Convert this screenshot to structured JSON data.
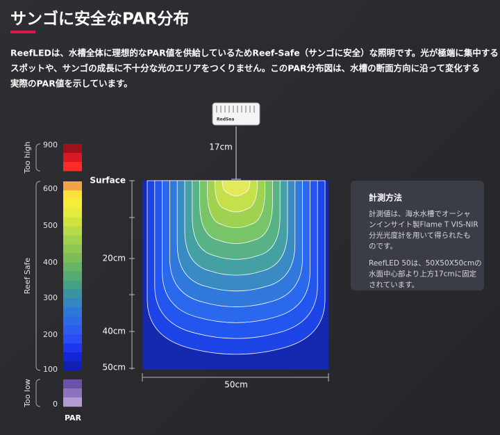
{
  "header": {
    "title": "サンゴに安全なPAR分布",
    "paragraph": [
      "ReefLEDは、水槽全体に理想的なPAR値を供給しているためReef-Safe（サンゴに安全）な照明です。光が極端に集中する",
      "スポットや、サンゴの成長に不十分な光のエリアをつくりません。このPAR分布図は、水槽の断面方向に沿って変化する",
      "実際のPAR値を示しています。"
    ]
  },
  "scale": {
    "title": "PAR",
    "groups": [
      {
        "label": "Too high",
        "ticks": [
          "900"
        ],
        "colors": [
          "#a0101a",
          "#d81822",
          "#ff2a2a"
        ]
      },
      {
        "label": "Reef Safe",
        "ticks": [
          "600",
          "500",
          "400",
          "300",
          "200",
          "100"
        ],
        "colors": [
          "#f4a14c",
          "#fbe23a",
          "#f3ee3c",
          "#e4ea3e",
          "#cfe240",
          "#b8da48",
          "#a3d04e",
          "#8fc654",
          "#7cbd5a",
          "#68b464",
          "#56aa72",
          "#46a084",
          "#3a93a0",
          "#3386c0",
          "#2f78d8",
          "#2e6ae6",
          "#2d5cf0",
          "#2a4ef4",
          "#1f36f0",
          "#1424d8",
          "#1020b0"
        ]
      },
      {
        "label": "Too low",
        "ticks": [
          "0"
        ],
        "colors": [
          "#6a52a8",
          "#8e72bc",
          "#b39ad0"
        ]
      }
    ]
  },
  "diagram": {
    "fixture_label": "RedSea",
    "height_label": "17cm",
    "depth_labels": [
      "Surface",
      "20cm",
      "40cm",
      "50cm"
    ],
    "width_label": "50cm"
  },
  "info": {
    "title": "計測方法",
    "paragraphs": [
      [
        "計測値は、海水水槽でオーシャ",
        "ンインサイト製Flame T VIS-NIR",
        "分光光度計を用いて得られたも",
        "のです。"
      ],
      [
        "ReefLED 50は、50X50X50cmの",
        "水面中心部より上方17cmに固定",
        "されています。"
      ]
    ]
  }
}
